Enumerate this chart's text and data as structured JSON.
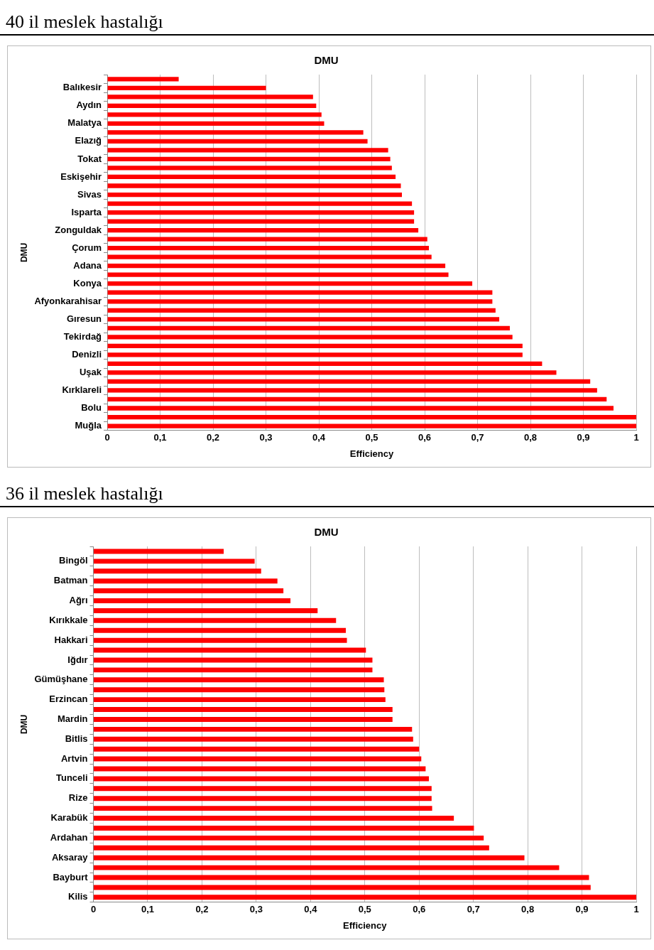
{
  "chart_data": [
    {
      "type": "bar",
      "subtitle": "40 il meslek hastalığı",
      "title": "DMU",
      "xlabel": "Efficiency",
      "ylabel": "DMU",
      "orientation": "horizontal",
      "grid": "x",
      "legend": false,
      "categories": [
        null,
        "Balıkesir",
        null,
        "Aydın",
        null,
        "Malatya",
        null,
        "Elazığ",
        null,
        "Tokat",
        null,
        "Eskişehir",
        null,
        "Sivas",
        null,
        "Isparta",
        null,
        "Zonguldak",
        null,
        "Çorum",
        null,
        "Adana",
        null,
        "Konya",
        null,
        "Afyonkarahisar",
        null,
        "Gıresun",
        null,
        "Tekirdağ",
        null,
        "Denizli",
        null,
        "Uşak",
        null,
        "Kırklareli",
        null,
        "Bolu",
        null,
        "Muğla"
      ],
      "values": [
        0.135,
        0.3,
        0.389,
        0.395,
        0.405,
        0.41,
        0.484,
        0.492,
        0.531,
        0.535,
        0.538,
        0.545,
        0.555,
        0.557,
        0.576,
        0.58,
        0.58,
        0.588,
        0.605,
        0.608,
        0.613,
        0.639,
        0.645,
        0.69,
        0.728,
        0.728,
        0.734,
        0.741,
        0.761,
        0.766,
        0.785,
        0.785,
        0.822,
        0.849,
        0.913,
        0.926,
        0.944,
        0.957,
        1,
        1
      ],
      "color": "#ff0000",
      "xlim": [
        0,
        1
      ],
      "xticks": [
        {
          "value": 0,
          "label": "0"
        },
        {
          "value": 0.1,
          "label": "0,1"
        },
        {
          "value": 0.2,
          "label": "0,2"
        },
        {
          "value": 0.3,
          "label": "0,3"
        },
        {
          "value": 0.4,
          "label": "0,4"
        },
        {
          "value": 0.5,
          "label": "0,5"
        },
        {
          "value": 0.6,
          "label": "0,6"
        },
        {
          "value": 0.7,
          "label": "0,7"
        },
        {
          "value": 0.8,
          "label": "0,8"
        },
        {
          "value": 0.9,
          "label": "0,9"
        },
        {
          "value": 1,
          "label": "1"
        }
      ]
    },
    {
      "type": "bar",
      "subtitle": "36 il meslek hastalığı",
      "title": "DMU",
      "xlabel": "Efficiency",
      "ylabel": "DMU",
      "orientation": "horizontal",
      "grid": "x",
      "legend": false,
      "categories": [
        null,
        "Bingöl",
        null,
        "Batman",
        null,
        "Ağrı",
        null,
        "Kırıkkale",
        null,
        "Hakkari",
        null,
        "Iğdır",
        null,
        "Gümüşhane",
        null,
        "Erzincan",
        null,
        "Mardin",
        null,
        "Bitlis",
        null,
        "Artvin",
        null,
        "Tunceli",
        null,
        "Rize",
        null,
        "Karabük",
        null,
        "Ardahan",
        null,
        "Aksaray",
        null,
        "Bayburt",
        null,
        "Kilis"
      ],
      "values": [
        0.24,
        0.297,
        0.309,
        0.339,
        0.35,
        0.363,
        0.413,
        0.447,
        0.465,
        0.467,
        0.502,
        0.514,
        0.514,
        0.535,
        0.536,
        0.538,
        0.551,
        0.551,
        0.587,
        0.589,
        0.6,
        0.604,
        0.612,
        0.618,
        0.623,
        0.623,
        0.624,
        0.664,
        0.701,
        0.719,
        0.729,
        0.794,
        0.858,
        0.913,
        0.916,
        1
      ],
      "color": "#ff0000",
      "xlim": [
        0,
        1
      ],
      "xticks": [
        {
          "value": 0,
          "label": "0"
        },
        {
          "value": 0.1,
          "label": "0,1"
        },
        {
          "value": 0.2,
          "label": "0,2"
        },
        {
          "value": 0.3,
          "label": "0,3"
        },
        {
          "value": 0.4,
          "label": "0,4"
        },
        {
          "value": 0.5,
          "label": "0,5"
        },
        {
          "value": 0.6,
          "label": "0,6"
        },
        {
          "value": 0.7,
          "label": "0,7"
        },
        {
          "value": 0.8,
          "label": "0,8"
        },
        {
          "value": 0.9,
          "label": "0,9"
        },
        {
          "value": 1,
          "label": "1"
        }
      ]
    }
  ]
}
